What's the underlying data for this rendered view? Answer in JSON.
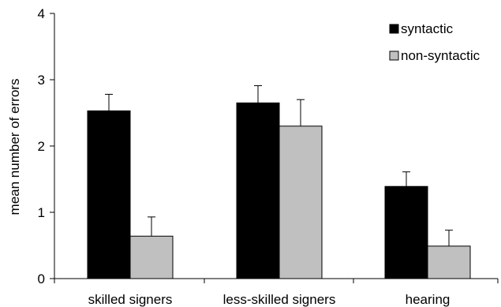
{
  "chart_data": {
    "type": "bar",
    "title": "",
    "xlabel": "",
    "ylabel": "mean number of errors",
    "ylim": [
      0,
      4
    ],
    "yticks": [
      0,
      1,
      2,
      3,
      4
    ],
    "categories": [
      "skilled signers",
      "less-skilled signers",
      "hearing"
    ],
    "series": [
      {
        "name": "syntactic",
        "color": "#000000",
        "values": [
          2.53,
          2.65,
          1.39
        ],
        "errors": [
          0.25,
          0.26,
          0.22
        ]
      },
      {
        "name": "non-syntactic",
        "color": "#c0c0c0",
        "values": [
          0.64,
          2.3,
          0.49
        ],
        "errors": [
          0.29,
          0.4,
          0.24
        ]
      }
    ],
    "legend_position": "top-right",
    "grid": false
  }
}
